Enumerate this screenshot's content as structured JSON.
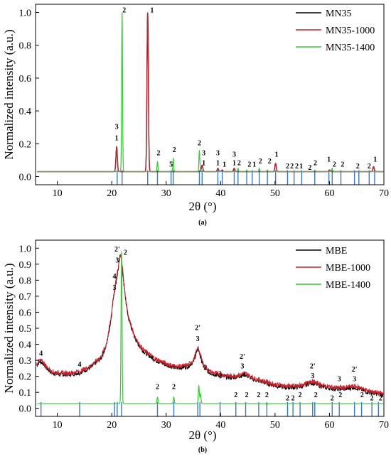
{
  "chart_data": [
    {
      "panel": "a",
      "caption": "(a)",
      "type": "line",
      "xlabel": "2θ (°)",
      "ylabel": "Normalized intensity (a.u.)",
      "xlim": [
        6,
        70
      ],
      "ylim": [
        -0.05,
        1.05
      ],
      "xticks": [
        10,
        20,
        30,
        40,
        50,
        60,
        70
      ],
      "yticks": [
        0.0,
        0.2,
        0.4,
        0.6,
        0.8,
        1.0
      ],
      "legend_position": "top-right",
      "baseline": 0.03,
      "series": [
        {
          "name": "MN35",
          "color": "#000000"
        },
        {
          "name": "MN35-1000",
          "color": "#d0202a"
        },
        {
          "name": "MN35-1400",
          "color": "#33cc33"
        }
      ],
      "peaks_red": [
        {
          "x": 20.9,
          "y": 0.18
        },
        {
          "x": 26.6,
          "y": 1.0
        },
        {
          "x": 36.6,
          "y": 0.07
        },
        {
          "x": 39.5,
          "y": 0.05
        },
        {
          "x": 40.3,
          "y": 0.04
        },
        {
          "x": 42.5,
          "y": 0.05
        },
        {
          "x": 45.8,
          "y": 0.03
        },
        {
          "x": 50.1,
          "y": 0.08
        },
        {
          "x": 54.9,
          "y": 0.03
        },
        {
          "x": 60.0,
          "y": 0.04
        },
        {
          "x": 68.1,
          "y": 0.06
        }
      ],
      "peaks_green": [
        {
          "x": 21.9,
          "y": 1.0
        },
        {
          "x": 28.4,
          "y": 0.09
        },
        {
          "x": 31.3,
          "y": 0.11
        },
        {
          "x": 36.1,
          "y": 0.16
        },
        {
          "x": 43.2,
          "y": 0.05
        },
        {
          "x": 44.8,
          "y": 0.04
        },
        {
          "x": 47.1,
          "y": 0.05
        },
        {
          "x": 48.6,
          "y": 0.04
        },
        {
          "x": 52.3,
          "y": 0.03
        },
        {
          "x": 53.5,
          "y": 0.03
        },
        {
          "x": 57.3,
          "y": 0.04
        },
        {
          "x": 60.5,
          "y": 0.05
        },
        {
          "x": 62.1,
          "y": 0.03
        },
        {
          "x": 65.4,
          "y": 0.03
        },
        {
          "x": 66.6,
          "y": 0.03
        }
      ],
      "reference_lines": [
        21.0,
        21.9,
        26.6,
        28.4,
        30.9,
        31.3,
        36.1,
        36.6,
        39.5,
        40.3,
        42.5,
        43.2,
        44.8,
        45.8,
        47.1,
        48.6,
        50.1,
        52.3,
        53.5,
        54.9,
        57.3,
        59.9,
        60.5,
        62.1,
        64.6,
        65.4,
        67.3,
        68.3
      ],
      "annotations": [
        {
          "x": 20.9,
          "y": 0.22,
          "text": "1"
        },
        {
          "x": 20.9,
          "y": 0.29,
          "text": "3"
        },
        {
          "x": 22.3,
          "y": 1.0,
          "text": "2"
        },
        {
          "x": 27.4,
          "y": 1.0,
          "text": "1"
        },
        {
          "x": 28.6,
          "y": 0.13,
          "text": "2"
        },
        {
          "x": 30.9,
          "y": 0.06,
          "text": "5"
        },
        {
          "x": 31.5,
          "y": 0.15,
          "text": "2"
        },
        {
          "x": 36.1,
          "y": 0.19,
          "text": "2"
        },
        {
          "x": 36.9,
          "y": 0.07,
          "text": "1"
        },
        {
          "x": 36.9,
          "y": 0.13,
          "text": "3"
        },
        {
          "x": 39.5,
          "y": 0.13,
          "text": "3"
        },
        {
          "x": 39.5,
          "y": 0.07,
          "text": "1"
        },
        {
          "x": 40.7,
          "y": 0.06,
          "text": "1"
        },
        {
          "x": 42.5,
          "y": 0.07,
          "text": "1"
        },
        {
          "x": 42.5,
          "y": 0.12,
          "text": "3"
        },
        {
          "x": 43.4,
          "y": 0.07,
          "text": "2"
        },
        {
          "x": 45.3,
          "y": 0.06,
          "text": "2"
        },
        {
          "x": 46.2,
          "y": 0.06,
          "text": "1"
        },
        {
          "x": 47.3,
          "y": 0.08,
          "text": "2"
        },
        {
          "x": 49.0,
          "y": 0.08,
          "text": "2"
        },
        {
          "x": 50.3,
          "y": 0.12,
          "text": "1"
        },
        {
          "x": 52.3,
          "y": 0.05,
          "text": "2"
        },
        {
          "x": 53.1,
          "y": 0.05,
          "text": "2"
        },
        {
          "x": 54.0,
          "y": 0.05,
          "text": "2"
        },
        {
          "x": 54.8,
          "y": 0.05,
          "text": "1"
        },
        {
          "x": 56.4,
          "y": 0.04,
          "text": "2"
        },
        {
          "x": 57.4,
          "y": 0.07,
          "text": "2"
        },
        {
          "x": 59.9,
          "y": 0.09,
          "text": "1"
        },
        {
          "x": 60.9,
          "y": 0.06,
          "text": "2"
        },
        {
          "x": 62.4,
          "y": 0.06,
          "text": "2"
        },
        {
          "x": 65.2,
          "y": 0.05,
          "text": "2"
        },
        {
          "x": 67.3,
          "y": 0.05,
          "text": "2"
        },
        {
          "x": 68.4,
          "y": 0.09,
          "text": "1"
        }
      ]
    },
    {
      "panel": "b",
      "caption": "(b)",
      "type": "line",
      "xlabel": "2θ (°)",
      "ylabel": "Normalized intensity (a.u.)",
      "xlim": [
        6,
        70
      ],
      "ylim": [
        -0.05,
        1.05
      ],
      "xticks": [
        10,
        20,
        30,
        40,
        50,
        60,
        70
      ],
      "yticks": [
        0.0,
        0.1,
        0.2,
        0.3,
        0.4,
        0.5,
        0.6,
        0.7,
        0.8,
        0.9,
        1.0
      ],
      "legend_position": "top-right",
      "series": [
        {
          "name": "MBE",
          "color": "#000000"
        },
        {
          "name": "MBE-1000",
          "color": "#d0202a"
        },
        {
          "name": "MBE-1400",
          "color": "#33cc33"
        }
      ],
      "amorphous_curve": [
        [
          6.2,
          0.28
        ],
        [
          6.8,
          0.3
        ],
        [
          7.4,
          0.29
        ],
        [
          8.0,
          0.26
        ],
        [
          9.0,
          0.23
        ],
        [
          10.5,
          0.22
        ],
        [
          12.0,
          0.22
        ],
        [
          14.0,
          0.23
        ],
        [
          16.0,
          0.26
        ],
        [
          18.0,
          0.32
        ],
        [
          19.0,
          0.4
        ],
        [
          19.8,
          0.55
        ],
        [
          20.3,
          0.7
        ],
        [
          20.8,
          0.8
        ],
        [
          21.2,
          0.88
        ],
        [
          21.5,
          0.95
        ],
        [
          21.7,
          0.97
        ],
        [
          22.0,
          0.86
        ],
        [
          22.5,
          0.7
        ],
        [
          23.0,
          0.58
        ],
        [
          24.0,
          0.47
        ],
        [
          25.0,
          0.4
        ],
        [
          26.0,
          0.36
        ],
        [
          28.0,
          0.31
        ],
        [
          30.0,
          0.28
        ],
        [
          32.0,
          0.26
        ],
        [
          34.0,
          0.27
        ],
        [
          35.0,
          0.3
        ],
        [
          35.5,
          0.35
        ],
        [
          35.9,
          0.38
        ],
        [
          36.3,
          0.33
        ],
        [
          37.0,
          0.26
        ],
        [
          38.0,
          0.23
        ],
        [
          40.0,
          0.21
        ],
        [
          42.0,
          0.2
        ],
        [
          43.5,
          0.21
        ],
        [
          44.5,
          0.22
        ],
        [
          46.0,
          0.19
        ],
        [
          48.0,
          0.17
        ],
        [
          50.0,
          0.15
        ],
        [
          52.0,
          0.14
        ],
        [
          54.0,
          0.14
        ],
        [
          55.5,
          0.15
        ],
        [
          56.5,
          0.17
        ],
        [
          57.5,
          0.16
        ],
        [
          59.0,
          0.14
        ],
        [
          61.0,
          0.13
        ],
        [
          63.0,
          0.13
        ],
        [
          64.5,
          0.14
        ],
        [
          65.5,
          0.13
        ],
        [
          67.0,
          0.11
        ],
        [
          68.5,
          0.1
        ],
        [
          70.0,
          0.09
        ]
      ],
      "peaks_green": [
        {
          "x": 21.8,
          "y": 0.98
        },
        {
          "x": 28.4,
          "y": 0.07
        },
        {
          "x": 31.4,
          "y": 0.07
        },
        {
          "x": 36.0,
          "y": 0.14
        },
        {
          "x": 36.3,
          "y": 0.09
        },
        {
          "x": 43.1,
          "y": 0.03
        },
        {
          "x": 47.0,
          "y": 0.03
        },
        {
          "x": 48.5,
          "y": 0.02
        },
        {
          "x": 57.3,
          "y": 0.03
        },
        {
          "x": 65.3,
          "y": 0.03
        }
      ],
      "green_baseline": 0.03,
      "reference_lines": [
        7.0,
        14.1,
        20.5,
        21.0,
        21.8,
        28.4,
        31.4,
        35.8,
        36.2,
        39.9,
        42.8,
        44.6,
        47.0,
        48.5,
        52.3,
        53.3,
        54.6,
        56.9,
        57.3,
        60.5,
        61.8,
        64.6,
        65.9,
        67.8,
        69.0
      ],
      "annotations": [
        {
          "x": 7.0,
          "y": 0.33,
          "text": "4"
        },
        {
          "x": 14.1,
          "y": 0.26,
          "text": "4"
        },
        {
          "x": 20.5,
          "y": 0.74,
          "text": "3"
        },
        {
          "x": 20.5,
          "y": 0.81,
          "text": "4"
        },
        {
          "x": 21.0,
          "y": 0.91,
          "text": "3"
        },
        {
          "x": 21.0,
          "y": 0.98,
          "text": "2'"
        },
        {
          "x": 22.5,
          "y": 0.96,
          "text": "2"
        },
        {
          "x": 28.4,
          "y": 0.12,
          "text": "2"
        },
        {
          "x": 31.4,
          "y": 0.12,
          "text": "2"
        },
        {
          "x": 35.8,
          "y": 0.42,
          "text": "3"
        },
        {
          "x": 35.8,
          "y": 0.49,
          "text": "2'"
        },
        {
          "x": 37.2,
          "y": 0.24,
          "text": "2"
        },
        {
          "x": 39.9,
          "y": 0.2,
          "text": "3"
        },
        {
          "x": 42.8,
          "y": 0.07,
          "text": "2"
        },
        {
          "x": 44.0,
          "y": 0.25,
          "text": "3"
        },
        {
          "x": 44.0,
          "y": 0.31,
          "text": "2'"
        },
        {
          "x": 44.8,
          "y": 0.07,
          "text": "2"
        },
        {
          "x": 47.0,
          "y": 0.07,
          "text": "2"
        },
        {
          "x": 48.5,
          "y": 0.07,
          "text": "2"
        },
        {
          "x": 52.3,
          "y": 0.05,
          "text": "2"
        },
        {
          "x": 53.3,
          "y": 0.05,
          "text": "2"
        },
        {
          "x": 54.6,
          "y": 0.07,
          "text": "2"
        },
        {
          "x": 56.9,
          "y": 0.19,
          "text": "3"
        },
        {
          "x": 56.9,
          "y": 0.25,
          "text": "2'"
        },
        {
          "x": 57.5,
          "y": 0.07,
          "text": "2"
        },
        {
          "x": 60.5,
          "y": 0.05,
          "text": "2"
        },
        {
          "x": 61.8,
          "y": 0.17,
          "text": "3"
        },
        {
          "x": 62.0,
          "y": 0.07,
          "text": "2"
        },
        {
          "x": 64.6,
          "y": 0.17,
          "text": "3"
        },
        {
          "x": 64.6,
          "y": 0.23,
          "text": "2'"
        },
        {
          "x": 66.0,
          "y": 0.07,
          "text": "2"
        },
        {
          "x": 67.8,
          "y": 0.05,
          "text": "2"
        },
        {
          "x": 69.4,
          "y": 0.05,
          "text": "2"
        }
      ]
    }
  ],
  "colors": {
    "reference": "#3a78d0",
    "axis": "#000000"
  }
}
